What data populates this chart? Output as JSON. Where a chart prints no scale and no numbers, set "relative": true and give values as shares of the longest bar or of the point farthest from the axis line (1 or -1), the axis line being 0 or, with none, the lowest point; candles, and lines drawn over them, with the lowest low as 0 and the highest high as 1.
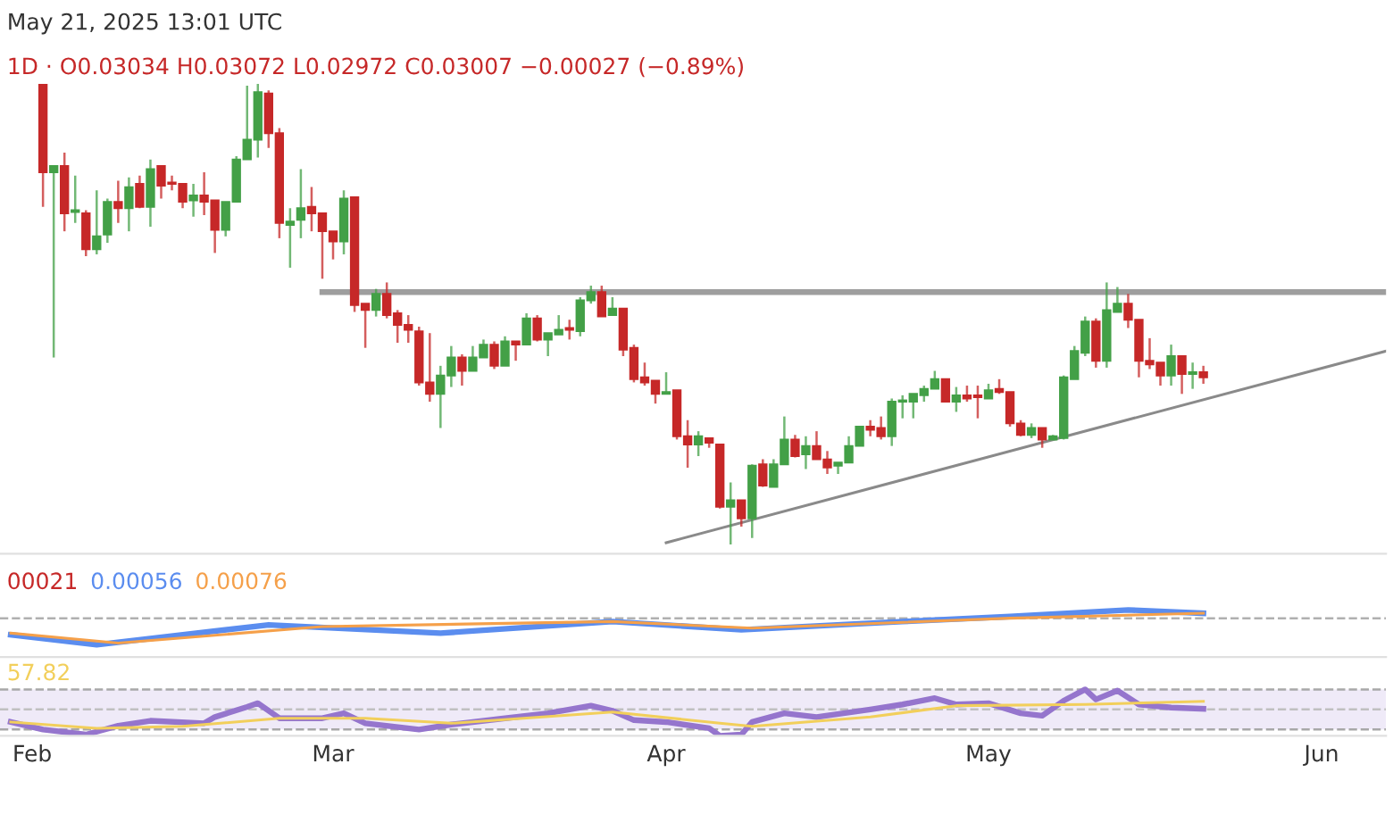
{
  "chart_data": [
    {
      "type": "candlestick",
      "relative": true,
      "tick_labels": false,
      "grid": false,
      "legend": false,
      "annotations": [
        "May 21, 2025 13:01 UTC",
        "1D · O0.03034 H0.03072 L0.02972 C0.03007 −0.00027 (−0.89%)"
      ],
      "xlim": [
        "2025-01-29",
        "2025-06-07"
      ],
      "x": [
        "2025-02-02",
        "2025-02-03",
        "2025-02-04",
        "2025-02-05",
        "2025-02-06",
        "2025-02-07",
        "2025-02-08",
        "2025-02-09",
        "2025-02-10",
        "2025-02-11",
        "2025-02-12",
        "2025-02-13",
        "2025-02-14",
        "2025-02-15",
        "2025-02-16",
        "2025-02-17",
        "2025-02-18",
        "2025-02-19",
        "2025-02-20",
        "2025-02-21",
        "2025-02-22",
        "2025-02-23",
        "2025-02-24",
        "2025-02-25",
        "2025-02-26",
        "2025-02-27",
        "2025-02-28",
        "2025-03-01",
        "2025-03-02",
        "2025-03-03",
        "2025-03-04",
        "2025-03-05",
        "2025-03-06",
        "2025-03-07",
        "2025-03-08",
        "2025-03-09",
        "2025-03-10",
        "2025-03-11",
        "2025-03-12",
        "2025-03-13",
        "2025-03-14",
        "2025-03-15",
        "2025-03-16",
        "2025-03-17",
        "2025-03-18",
        "2025-03-19",
        "2025-03-20",
        "2025-03-21",
        "2025-03-22",
        "2025-03-23",
        "2025-03-24",
        "2025-03-25",
        "2025-03-26",
        "2025-03-27",
        "2025-03-28",
        "2025-03-29",
        "2025-03-30",
        "2025-03-31",
        "2025-04-01",
        "2025-04-02",
        "2025-04-03",
        "2025-04-04",
        "2025-04-05",
        "2025-04-06",
        "2025-04-07",
        "2025-04-08",
        "2025-04-09",
        "2025-04-10",
        "2025-04-11",
        "2025-04-12",
        "2025-04-13",
        "2025-04-14",
        "2025-04-15",
        "2025-04-16",
        "2025-04-17",
        "2025-04-18",
        "2025-04-19",
        "2025-04-20",
        "2025-04-21",
        "2025-04-22",
        "2025-04-23",
        "2025-04-24",
        "2025-04-25",
        "2025-04-26",
        "2025-04-27",
        "2025-04-28",
        "2025-04-29",
        "2025-04-30",
        "2025-05-01",
        "2025-05-02",
        "2025-05-03",
        "2025-05-04",
        "2025-05-05",
        "2025-05-06",
        "2025-05-07",
        "2025-05-08",
        "2025-05-09",
        "2025-05-10",
        "2025-05-11",
        "2025-05-12",
        "2025-05-13",
        "2025-05-14",
        "2025-05-15",
        "2025-05-16",
        "2025-05-17",
        "2025-05-18",
        "2025-05-19",
        "2025-05-20",
        "2025-05-21"
      ],
      "ohlc": [
        [
          1.0,
          1.0,
          0.733,
          0.808
        ],
        [
          0.808,
          0.822,
          0.406,
          0.822
        ],
        [
          0.822,
          0.851,
          0.68,
          0.719
        ],
        [
          0.722,
          0.801,
          0.698,
          0.726
        ],
        [
          0.719,
          0.726,
          0.626,
          0.641
        ],
        [
          0.641,
          0.769,
          0.63,
          0.669
        ],
        [
          0.673,
          0.751,
          0.655,
          0.744
        ],
        [
          0.744,
          0.79,
          0.698,
          0.73
        ],
        [
          0.73,
          0.797,
          0.68,
          0.776
        ],
        [
          0.783,
          0.801,
          0.73,
          0.733
        ],
        [
          0.733,
          0.836,
          0.69,
          0.815
        ],
        [
          0.822,
          0.822,
          0.751,
          0.779
        ],
        [
          0.786,
          0.801,
          0.769,
          0.783
        ],
        [
          0.783,
          0.783,
          0.73,
          0.744
        ],
        [
          0.747,
          0.783,
          0.712,
          0.758
        ],
        [
          0.758,
          0.808,
          0.715,
          0.744
        ],
        [
          0.747,
          0.747,
          0.633,
          0.683
        ],
        [
          0.683,
          0.744,
          0.669,
          0.744
        ],
        [
          0.744,
          0.843,
          0.744,
          0.836
        ],
        [
          0.836,
          0.996,
          0.836,
          0.879
        ],
        [
          0.879,
          1.0,
          0.84,
          0.982
        ],
        [
          0.979,
          0.986,
          0.861,
          0.893
        ],
        [
          0.893,
          0.904,
          0.665,
          0.698
        ],
        [
          0.694,
          0.73,
          0.601,
          0.701
        ],
        [
          0.705,
          0.815,
          0.665,
          0.73
        ],
        [
          0.733,
          0.776,
          0.68,
          0.719
        ],
        [
          0.719,
          0.719,
          0.577,
          0.68
        ],
        [
          0.68,
          0.68,
          0.619,
          0.658
        ],
        [
          0.658,
          0.769,
          0.63,
          0.751
        ],
        [
          0.754,
          0.754,
          0.505,
          0.52
        ],
        [
          0.523,
          0.523,
          0.427,
          0.509
        ],
        [
          0.509,
          0.555,
          0.495,
          0.544
        ],
        [
          0.544,
          0.569,
          0.491,
          0.498
        ],
        [
          0.502,
          0.509,
          0.438,
          0.477
        ],
        [
          0.477,
          0.498,
          0.438,
          0.466
        ],
        [
          0.463,
          0.473,
          0.345,
          0.352
        ],
        [
          0.352,
          0.459,
          0.31,
          0.327
        ],
        [
          0.327,
          0.388,
          0.253,
          0.367
        ],
        [
          0.367,
          0.431,
          0.342,
          0.406
        ],
        [
          0.406,
          0.413,
          0.345,
          0.377
        ],
        [
          0.377,
          0.431,
          0.377,
          0.406
        ],
        [
          0.406,
          0.445,
          0.406,
          0.434
        ],
        [
          0.434,
          0.441,
          0.381,
          0.388
        ],
        [
          0.388,
          0.452,
          0.388,
          0.441
        ],
        [
          0.441,
          0.441,
          0.399,
          0.434
        ],
        [
          0.434,
          0.502,
          0.434,
          0.491
        ],
        [
          0.491,
          0.498,
          0.441,
          0.445
        ],
        [
          0.445,
          0.459,
          0.409,
          0.459
        ],
        [
          0.456,
          0.498,
          0.456,
          0.466
        ],
        [
          0.47,
          0.488,
          0.445,
          0.466
        ],
        [
          0.463,
          0.537,
          0.452,
          0.53
        ],
        [
          0.53,
          0.562,
          0.523,
          0.548
        ],
        [
          0.548,
          0.562,
          0.495,
          0.495
        ],
        [
          0.498,
          0.537,
          0.498,
          0.512
        ],
        [
          0.512,
          0.512,
          0.409,
          0.423
        ],
        [
          0.427,
          0.434,
          0.352,
          0.359
        ],
        [
          0.363,
          0.395,
          0.345,
          0.352
        ],
        [
          0.356,
          0.356,
          0.306,
          0.327
        ],
        [
          0.327,
          0.374,
          0.327,
          0.331
        ],
        [
          0.335,
          0.335,
          0.228,
          0.235
        ],
        [
          0.235,
          0.27,
          0.167,
          0.217
        ],
        [
          0.217,
          0.246,
          0.192,
          0.235
        ],
        [
          0.231,
          0.231,
          0.21,
          0.221
        ],
        [
          0.217,
          0.217,
          0.078,
          0.082
        ],
        [
          0.082,
          0.135,
          0.0,
          0.096
        ],
        [
          0.096,
          0.096,
          0.039,
          0.057
        ],
        [
          0.057,
          0.174,
          0.014,
          0.171
        ],
        [
          0.174,
          0.185,
          0.125,
          0.128
        ],
        [
          0.125,
          0.185,
          0.125,
          0.174
        ],
        [
          0.174,
          0.278,
          0.174,
          0.228
        ],
        [
          0.228,
          0.238,
          0.189,
          0.192
        ],
        [
          0.196,
          0.235,
          0.164,
          0.214
        ],
        [
          0.214,
          0.246,
          0.185,
          0.185
        ],
        [
          0.185,
          0.203,
          0.153,
          0.167
        ],
        [
          0.171,
          0.178,
          0.153,
          0.178
        ],
        [
          0.178,
          0.235,
          0.178,
          0.214
        ],
        [
          0.214,
          0.256,
          0.214,
          0.256
        ],
        [
          0.256,
          0.27,
          0.235,
          0.249
        ],
        [
          0.253,
          0.278,
          0.228,
          0.235
        ],
        [
          0.235,
          0.317,
          0.214,
          0.31
        ],
        [
          0.31,
          0.324,
          0.274,
          0.313
        ],
        [
          0.31,
          0.327,
          0.274,
          0.327
        ],
        [
          0.324,
          0.345,
          0.31,
          0.338
        ],
        [
          0.338,
          0.377,
          0.338,
          0.359
        ],
        [
          0.359,
          0.359,
          0.31,
          0.31
        ],
        [
          0.31,
          0.342,
          0.288,
          0.324
        ],
        [
          0.324,
          0.345,
          0.31,
          0.317
        ],
        [
          0.324,
          0.345,
          0.274,
          0.32
        ],
        [
          0.317,
          0.349,
          0.317,
          0.335
        ],
        [
          0.338,
          0.359,
          0.327,
          0.331
        ],
        [
          0.331,
          0.331,
          0.256,
          0.263
        ],
        [
          0.263,
          0.27,
          0.235,
          0.238
        ],
        [
          0.238,
          0.263,
          0.231,
          0.253
        ],
        [
          0.253,
          0.253,
          0.21,
          0.228
        ],
        [
          0.228,
          0.238,
          0.228,
          0.235
        ],
        [
          0.231,
          0.367,
          0.228,
          0.363
        ],
        [
          0.359,
          0.431,
          0.359,
          0.42
        ],
        [
          0.416,
          0.495,
          0.409,
          0.484
        ],
        [
          0.484,
          0.491,
          0.384,
          0.399
        ],
        [
          0.399,
          0.569,
          0.384,
          0.509
        ],
        [
          0.505,
          0.559,
          0.505,
          0.523
        ],
        [
          0.523,
          0.544,
          0.47,
          0.488
        ],
        [
          0.488,
          0.488,
          0.363,
          0.399
        ],
        [
          0.399,
          0.448,
          0.381,
          0.391
        ],
        [
          0.395,
          0.395,
          0.345,
          0.367
        ],
        [
          0.367,
          0.434,
          0.345,
          0.409
        ],
        [
          0.409,
          0.409,
          0.327,
          0.37
        ],
        [
          0.37,
          0.395,
          0.338,
          0.374
        ],
        [
          0.374,
          0.388,
          0.349,
          0.363
        ]
      ],
      "series": [
        {
          "type": "line",
          "color": "#9e9e9e",
          "x": [
            "2025-02-28",
            "2025-06-07"
          ],
          "values": [
            0.548,
            0.548
          ]
        },
        {
          "type": "line",
          "color": "#8a8a8a",
          "x": [
            "2025-04-01",
            "2025-06-07"
          ],
          "values": [
            0.004,
            0.42
          ]
        }
      ]
    },
    {
      "type": "line",
      "relative": true,
      "tick_labels": false,
      "grid": false,
      "legend": false,
      "annotations": [
        "00021",
        "0.00056",
        "0.00076"
      ],
      "xlim": [
        "2025-01-29",
        "2025-06-07"
      ],
      "ref_lines": [
        {
          "axis": "y",
          "value": 0,
          "color": "#b0b0b0",
          "line_style": "dashed"
        }
      ],
      "series": [
        {
          "color": "#5b8def",
          "x": [
            "2025-01-30",
            "2025-02-07",
            "2025-02-23",
            "2025-03-11",
            "2025-03-27",
            "2025-04-08",
            "2025-04-23",
            "2025-05-03",
            "2025-05-14",
            "2025-05-21"
          ],
          "values": [
            -0.625,
            -1,
            -0.25,
            -0.5625,
            -0.125,
            -0.4375,
            -0.125,
            0.0625,
            0.3125,
            0.1875
          ]
        },
        {
          "color": "#f5a04a",
          "x": [
            "2025-01-30",
            "2025-02-09",
            "2025-02-28",
            "2025-03-27",
            "2025-04-09",
            "2025-05-03",
            "2025-05-21"
          ],
          "values": [
            -0.5625,
            -0.9375,
            -0.3125,
            -0.125,
            -0.375,
            0,
            0.1875
          ]
        }
      ]
    },
    {
      "type": "line",
      "relative": true,
      "tick_labels": "x",
      "grid": false,
      "legend": false,
      "annotations": [
        "57.82"
      ],
      "xlim": [
        "2025-01-29",
        "2025-06-07"
      ],
      "xticks": [
        {
          "value": "2025-02-01",
          "label": "Feb"
        },
        {
          "value": "2025-03-01",
          "label": "Mar"
        },
        {
          "value": "2025-04-01",
          "label": "Apr"
        },
        {
          "value": "2025-05-01",
          "label": "May"
        },
        {
          "value": "2025-06-01",
          "label": "Jun"
        }
      ],
      "bands": [
        {
          "axis": "y",
          "from": 0.135,
          "to": 1.0,
          "color": "#efeaf8"
        }
      ],
      "ref_lines": [
        {
          "axis": "y",
          "value": 1.0,
          "color": "#a8a8a8",
          "line_style": "dashed"
        },
        {
          "axis": "y",
          "value": 0.568,
          "color": "#c0c0c0",
          "line_style": "dashed"
        },
        {
          "axis": "y",
          "value": 0.135,
          "color": "#a8a8a8",
          "line_style": "dashed"
        }
      ],
      "series": [
        {
          "color": "#9575cd",
          "x": [
            "2025-01-30",
            "2025-02-02",
            "2025-02-06",
            "2025-02-09",
            "2025-02-12",
            "2025-02-17",
            "2025-02-18",
            "2025-02-21",
            "2025-02-22",
            "2025-02-24",
            "2025-02-28",
            "2025-03-02",
            "2025-03-04",
            "2025-03-09",
            "2025-03-12",
            "2025-03-17",
            "2025-03-21",
            "2025-03-25",
            "2025-03-27",
            "2025-03-29",
            "2025-04-01",
            "2025-04-05",
            "2025-04-06",
            "2025-04-08",
            "2025-04-09",
            "2025-04-12",
            "2025-04-15",
            "2025-04-20",
            "2025-04-23",
            "2025-04-26",
            "2025-04-28",
            "2025-05-01",
            "2025-05-04",
            "2025-05-06",
            "2025-05-08",
            "2025-05-10",
            "2025-05-11",
            "2025-05-13",
            "2025-05-15",
            "2025-05-18",
            "2025-05-21"
          ],
          "values": [
            0.297,
            0.135,
            0.027,
            0.216,
            0.324,
            0.27,
            0.405,
            0.622,
            0.703,
            0.378,
            0.378,
            0.486,
            0.27,
            0.135,
            0.243,
            0.378,
            0.486,
            0.649,
            0.541,
            0.338,
            0.297,
            0.162,
            0,
            0.027,
            0.297,
            0.486,
            0.405,
            0.568,
            0.676,
            0.811,
            0.676,
            0.703,
            0.486,
            0.432,
            0.757,
            1.0,
            0.784,
            0.973,
            0.676,
            0.608,
            0.581
          ]
        },
        {
          "color": "#f2cf5b",
          "x": [
            "2025-01-30",
            "2025-02-07",
            "2025-02-15",
            "2025-02-24",
            "2025-03-04",
            "2025-03-12",
            "2025-03-27",
            "2025-04-06",
            "2025-04-09",
            "2025-04-20",
            "2025-04-28",
            "2025-05-10",
            "2025-05-21"
          ],
          "values": [
            0.297,
            0.162,
            0.203,
            0.378,
            0.378,
            0.27,
            0.514,
            0.27,
            0.203,
            0.405,
            0.649,
            0.676,
            0.743
          ]
        }
      ]
    }
  ]
}
